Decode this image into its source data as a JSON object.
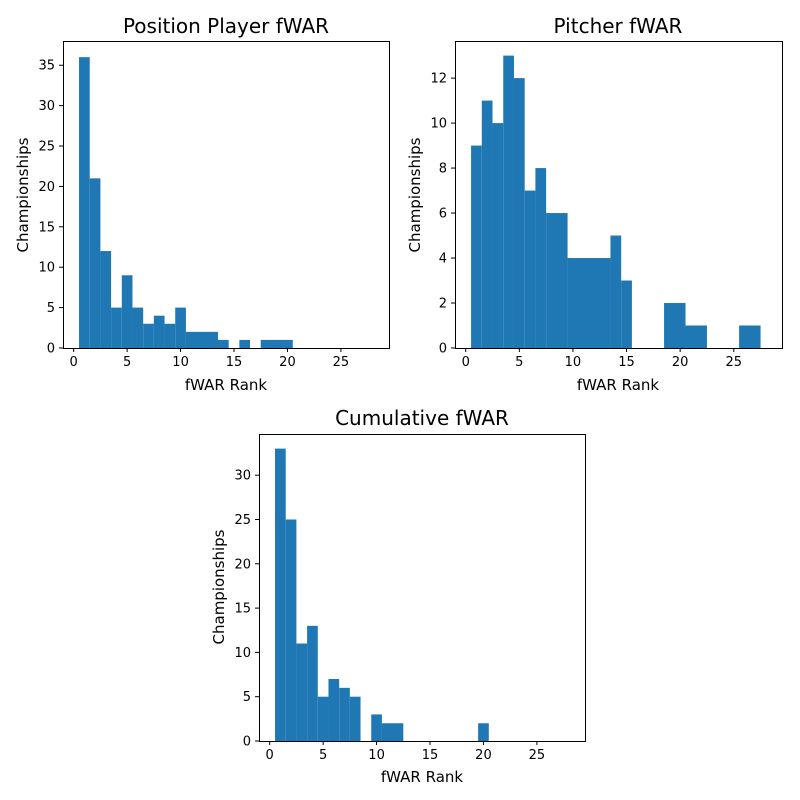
{
  "colors": {
    "bar": "#1f77b4"
  },
  "chart_data": [
    {
      "type": "bar",
      "title": "Position Player fWAR",
      "xlabel": "fWAR Rank",
      "ylabel": "Championships",
      "bins": [
        {
          "x0": 0.5,
          "x1": 1.5,
          "value": 36
        },
        {
          "x0": 1.5,
          "x1": 2.5,
          "value": 21
        },
        {
          "x0": 2.5,
          "x1": 3.5,
          "value": 12
        },
        {
          "x0": 3.5,
          "x1": 4.5,
          "value": 5
        },
        {
          "x0": 4.5,
          "x1": 5.5,
          "value": 9
        },
        {
          "x0": 5.5,
          "x1": 6.5,
          "value": 5
        },
        {
          "x0": 6.5,
          "x1": 7.5,
          "value": 3
        },
        {
          "x0": 7.5,
          "x1": 8.5,
          "value": 4
        },
        {
          "x0": 8.5,
          "x1": 9.5,
          "value": 3
        },
        {
          "x0": 9.5,
          "x1": 10.5,
          "value": 5
        },
        {
          "x0": 10.5,
          "x1": 13.5,
          "value": 2
        },
        {
          "x0": 13.5,
          "x1": 14.5,
          "value": 1
        },
        {
          "x0": 15.5,
          "x1": 16.5,
          "value": 1
        },
        {
          "x0": 17.5,
          "x1": 20.5,
          "value": 1
        }
      ],
      "xlim": [
        -1,
        29.5
      ],
      "ylim": [
        0,
        38
      ],
      "xticks": [
        0,
        5,
        10,
        15,
        20,
        25
      ],
      "yticks": [
        0,
        5,
        10,
        15,
        20,
        25,
        30,
        35
      ]
    },
    {
      "type": "bar",
      "title": "Pitcher fWAR",
      "xlabel": "fWAR Rank",
      "ylabel": "Championships",
      "bins": [
        {
          "x0": 0.5,
          "x1": 1.5,
          "value": 9
        },
        {
          "x0": 1.5,
          "x1": 2.5,
          "value": 11
        },
        {
          "x0": 2.5,
          "x1": 3.5,
          "value": 10
        },
        {
          "x0": 3.5,
          "x1": 4.5,
          "value": 13
        },
        {
          "x0": 4.5,
          "x1": 5.5,
          "value": 12
        },
        {
          "x0": 5.5,
          "x1": 6.5,
          "value": 7
        },
        {
          "x0": 6.5,
          "x1": 7.5,
          "value": 8
        },
        {
          "x0": 7.5,
          "x1": 9.5,
          "value": 6
        },
        {
          "x0": 9.5,
          "x1": 13.5,
          "value": 4
        },
        {
          "x0": 13.5,
          "x1": 14.5,
          "value": 5
        },
        {
          "x0": 14.5,
          "x1": 15.5,
          "value": 3
        },
        {
          "x0": 18.5,
          "x1": 20.5,
          "value": 2
        },
        {
          "x0": 20.5,
          "x1": 22.5,
          "value": 1
        },
        {
          "x0": 25.5,
          "x1": 27.5,
          "value": 1
        }
      ],
      "xlim": [
        -1,
        29.5
      ],
      "ylim": [
        0,
        13.65
      ],
      "xticks": [
        0,
        5,
        10,
        15,
        20,
        25
      ],
      "yticks": [
        0,
        2,
        4,
        6,
        8,
        10,
        12
      ]
    },
    {
      "type": "bar",
      "title": "Cumulative fWAR",
      "xlabel": "fWAR Rank",
      "ylabel": "Championships",
      "bins": [
        {
          "x0": 0.5,
          "x1": 1.5,
          "value": 33
        },
        {
          "x0": 1.5,
          "x1": 2.5,
          "value": 25
        },
        {
          "x0": 2.5,
          "x1": 3.5,
          "value": 11
        },
        {
          "x0": 3.5,
          "x1": 4.5,
          "value": 13
        },
        {
          "x0": 4.5,
          "x1": 5.5,
          "value": 5
        },
        {
          "x0": 5.5,
          "x1": 6.5,
          "value": 7
        },
        {
          "x0": 6.5,
          "x1": 7.5,
          "value": 6
        },
        {
          "x0": 7.5,
          "x1": 8.5,
          "value": 5
        },
        {
          "x0": 9.5,
          "x1": 10.5,
          "value": 3
        },
        {
          "x0": 10.5,
          "x1": 12.5,
          "value": 2
        },
        {
          "x0": 19.5,
          "x1": 20.5,
          "value": 2
        }
      ],
      "xlim": [
        -1,
        29.5
      ],
      "ylim": [
        0,
        34.65
      ],
      "xticks": [
        0,
        5,
        10,
        15,
        20,
        25
      ],
      "yticks": [
        0,
        5,
        10,
        15,
        20,
        25,
        30
      ]
    }
  ]
}
